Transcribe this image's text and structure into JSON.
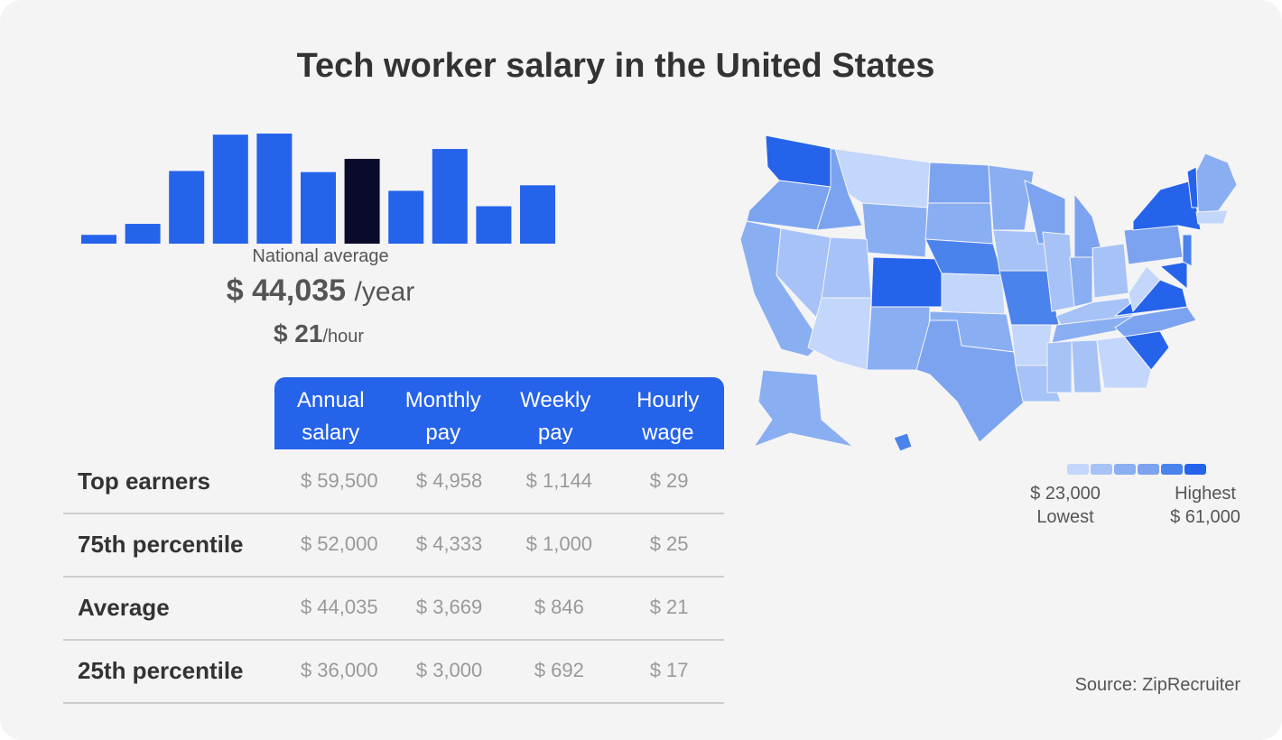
{
  "title": "Tech worker salary in the United States",
  "national": {
    "label": "National average",
    "year_value": "$ 44,035",
    "year_unit": "/year",
    "hour_value": "$ 21",
    "hour_unit": "/hour"
  },
  "chart_data": {
    "type": "bar",
    "title": "",
    "xlabel": "",
    "ylabel": "",
    "note": "salary distribution histogram, no axes printed; values relative to tallest bar (100)",
    "values": [
      8,
      18,
      66,
      99,
      100,
      65,
      77,
      48,
      86,
      34,
      53
    ],
    "highlight_index": 6,
    "colors": {
      "bar": "#2563eb",
      "highlight": "#0a0a2a"
    }
  },
  "table": {
    "headers": [
      [
        "Annual",
        "salary"
      ],
      [
        "Monthly",
        "pay"
      ],
      [
        "Weekly",
        "pay"
      ],
      [
        "Hourly",
        "wage"
      ]
    ],
    "rows": [
      {
        "label": "Top earners",
        "values": [
          "$ 59,500",
          "$ 4,958",
          "$ 1,144",
          "$ 29"
        ]
      },
      {
        "label": "75th percentile",
        "values": [
          "$ 52,000",
          "$ 4,333",
          "$ 1,000",
          "$ 25"
        ]
      },
      {
        "label": "Average",
        "values": [
          "$ 44,035",
          "$ 3,669",
          "$ 846",
          "$ 21"
        ]
      },
      {
        "label": "25th percentile",
        "values": [
          "$ 36,000",
          "$ 3,000",
          "$ 692",
          "$ 17"
        ]
      }
    ]
  },
  "map": {
    "legend": {
      "low_value": "$ 23,000",
      "low_label": "Lowest",
      "high_label": "Highest",
      "high_value": "$ 61,000",
      "colors": [
        "#c3d6fb",
        "#a6c2f7",
        "#8aaef2",
        "#7ba3f0",
        "#4b83ec",
        "#2563eb"
      ]
    }
  },
  "source": "Source: ZipRecruiter"
}
